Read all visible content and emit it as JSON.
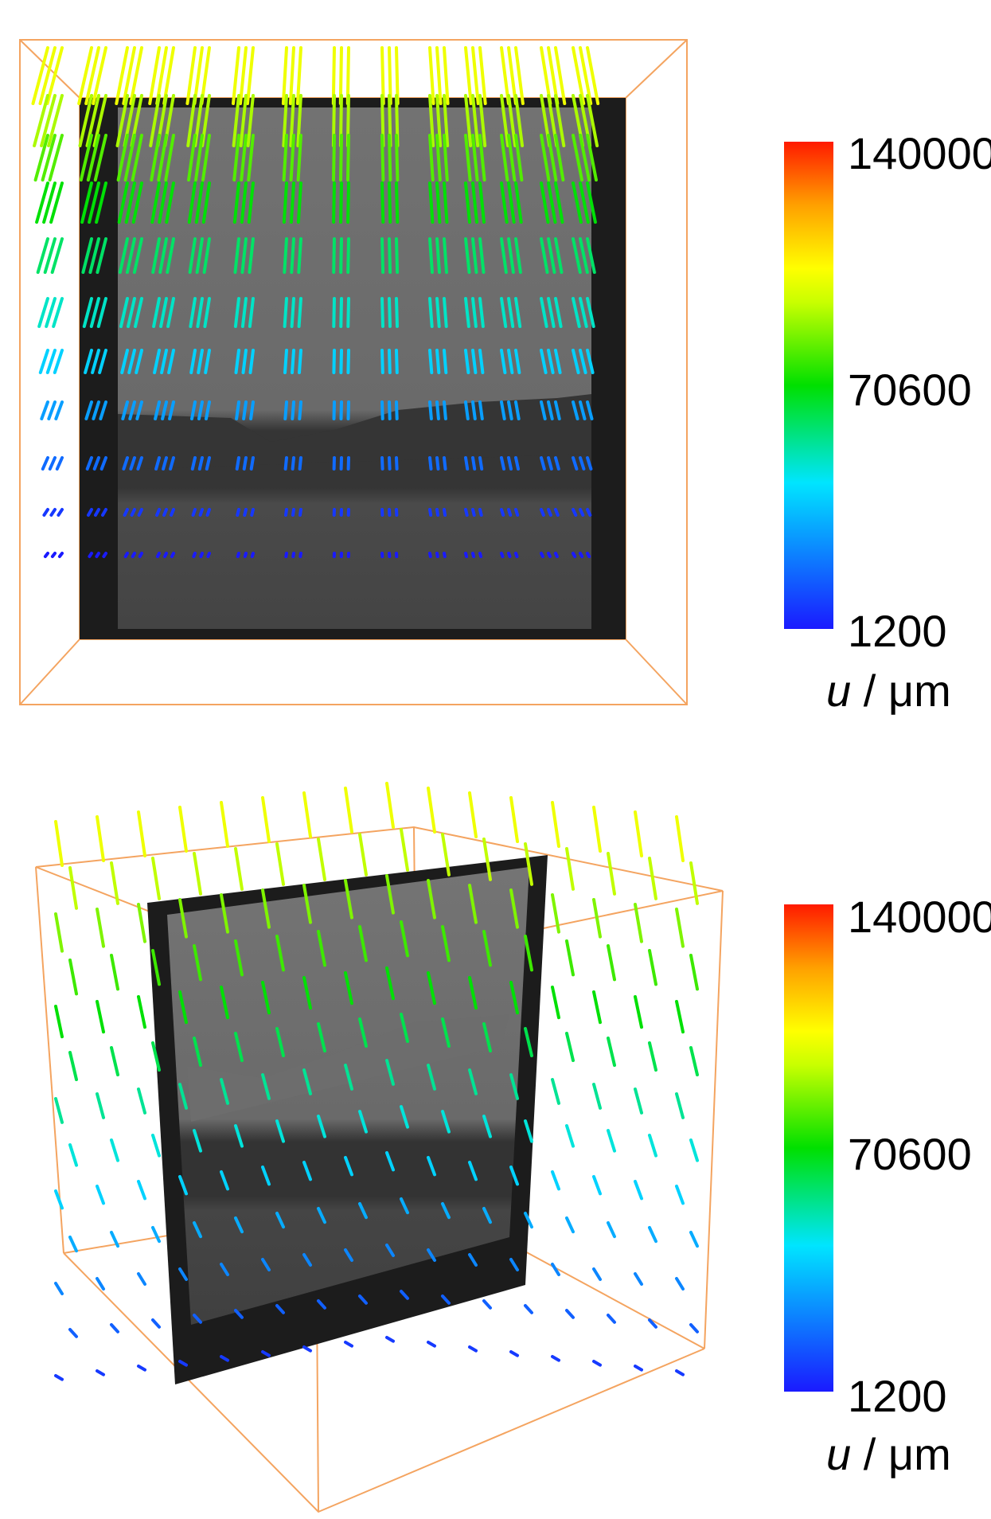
{
  "panels": [
    {
      "colorbar": {
        "max_label": "140000",
        "mid_label": "70600",
        "min_label": "1200"
      },
      "unit_symbol": "u",
      "unit_rest": " / μm"
    },
    {
      "colorbar": {
        "max_label": "140000",
        "mid_label": "70600",
        "min_label": "1200"
      },
      "unit_symbol": "u",
      "unit_rest": " / μm"
    }
  ],
  "colors": {
    "box_edge": "#f4a460",
    "scan_dark": "#1c1c1c",
    "scan_upper": "#6e6e6e",
    "scan_lower": "#474747",
    "colormap": [
      "#1a1aff",
      "#00e5ff",
      "#00e000",
      "#c8ff00",
      "#ffff00",
      "#ffa000",
      "#ff1a00"
    ]
  }
}
